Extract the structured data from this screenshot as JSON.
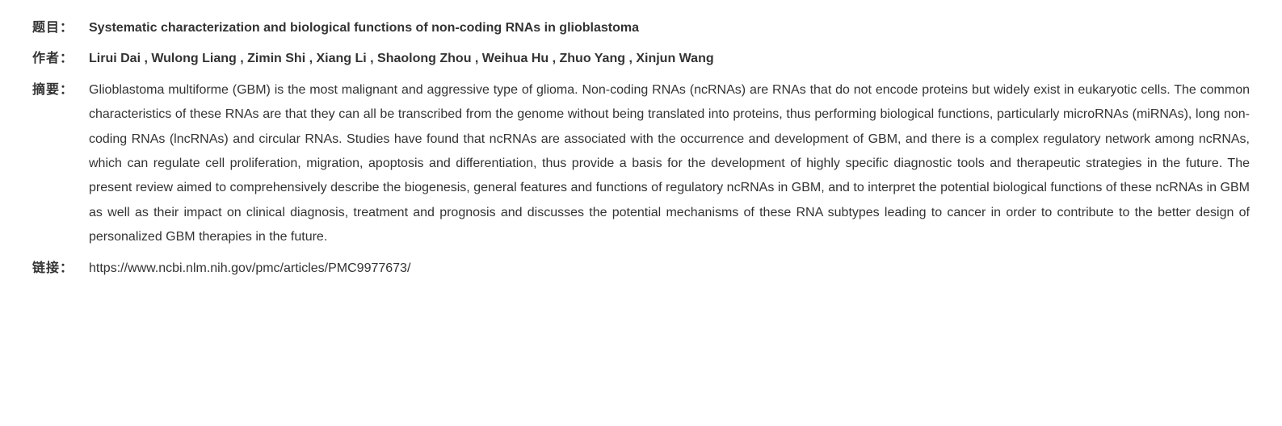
{
  "labels": {
    "title": "题目：",
    "authors": "作者：",
    "abstract": "摘要：",
    "link": "链接："
  },
  "title": "Systematic characterization and biological functions of non-coding RNAs in glioblastoma",
  "authors": "Lirui Dai , Wulong Liang , Zimin Shi , Xiang Li , Shaolong Zhou , Weihua Hu , Zhuo Yang , Xinjun Wang",
  "abstract": "Glioblastoma multiforme (GBM) is the most malignant and aggressive type of glioma. Non-coding RNAs (ncRNAs) are RNAs that do not encode proteins but widely exist in eukaryotic cells. The common characteristics of these RNAs are that they can all be transcribed from the genome without being translated into proteins, thus performing biological functions, particularly microRNAs (miRNAs), long non-coding RNAs (lncRNAs) and circular RNAs. Studies have found that ncRNAs are associated with the occurrence and development of GBM, and there is a complex regulatory network among ncRNAs, which can regulate cell proliferation, migration, apoptosis and differentiation, thus provide a basis for the development of highly specific diagnostic tools and therapeutic strategies in the future. The present review aimed to comprehensively describe the biogenesis, general features and functions of regulatory ncRNAs in GBM, and to interpret the potential biological functions of these ncRNAs in GBM as well as their impact on clinical diagnosis, treatment and prognosis and discusses the potential mechanisms of these RNA subtypes leading to cancer in order to contribute to the better design of personalized GBM therapies in the future.",
  "link": "https://www.ncbi.nlm.nih.gov/pmc/articles/PMC9977673/"
}
